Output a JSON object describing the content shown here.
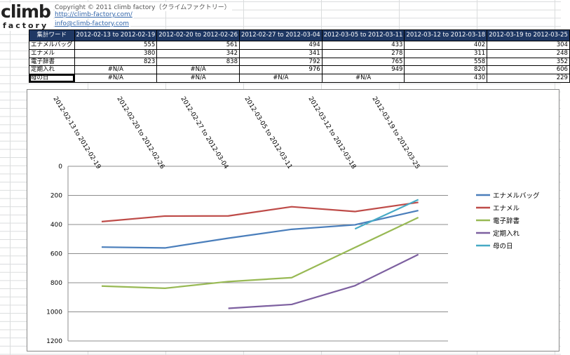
{
  "header": {
    "logo_main": "climb",
    "logo_sub": "factory",
    "copyright": "Copyright © 2011 climb factory（クライムファクトリー）",
    "site_url": "http://climb-factory.com/",
    "email": "info@climb-factory.com"
  },
  "table": {
    "corner_label": "集計ワード",
    "columns": [
      "2012-02-13 to 2012-02-19",
      "2012-02-20 to 2012-02-26",
      "2012-02-27 to 2012-03-04",
      "2012-03-05 to 2012-03-11",
      "2012-03-12 to 2012-03-18",
      "2012-03-19 to 2012-03-25"
    ],
    "rows": [
      {
        "label": "エナメルバッグ",
        "values": [
          "555",
          "561",
          "494",
          "433",
          "402",
          "304"
        ]
      },
      {
        "label": "エナメル",
        "values": [
          "380",
          "342",
          "341",
          "278",
          "311",
          "248"
        ]
      },
      {
        "label": "電子辞書",
        "values": [
          "823",
          "838",
          "792",
          "765",
          "558",
          "352"
        ]
      },
      {
        "label": "定期入れ",
        "values": [
          "#N/A",
          "#N/A",
          "976",
          "949",
          "820",
          "606"
        ]
      },
      {
        "label": "母の日",
        "values": [
          "#N/A",
          "#N/A",
          "#N/A",
          "#N/A",
          "430",
          "229"
        ]
      }
    ]
  },
  "chart_data": {
    "type": "line",
    "categories": [
      "2012-02-13 to 2012-02-19",
      "2012-02-20 to 2012-02-26",
      "2012-02-27 to 2012-03-04",
      "2012-03-05 to 2012-03-11",
      "2012-03-12 to 2012-03-18",
      "2012-03-19 to 2012-03-25"
    ],
    "ylim": [
      0,
      1200
    ],
    "y_reversed": true,
    "y_ticks": [
      "0",
      "200",
      "400",
      "600",
      "800",
      "1000",
      "1200"
    ],
    "grid": true,
    "legend_position": "right",
    "series": [
      {
        "name": "エナメルバッグ",
        "color": "#4a7ebb",
        "values": [
          555,
          561,
          494,
          433,
          402,
          304
        ]
      },
      {
        "name": "エナメル",
        "color": "#be4b48",
        "values": [
          380,
          342,
          341,
          278,
          311,
          248
        ]
      },
      {
        "name": "電子辞書",
        "color": "#98b954",
        "values": [
          823,
          838,
          792,
          765,
          558,
          352
        ]
      },
      {
        "name": "定期入れ",
        "color": "#7d60a0",
        "values": [
          null,
          null,
          976,
          949,
          820,
          606
        ]
      },
      {
        "name": "母の日",
        "color": "#46aac5",
        "values": [
          null,
          null,
          null,
          null,
          430,
          229
        ]
      }
    ]
  }
}
